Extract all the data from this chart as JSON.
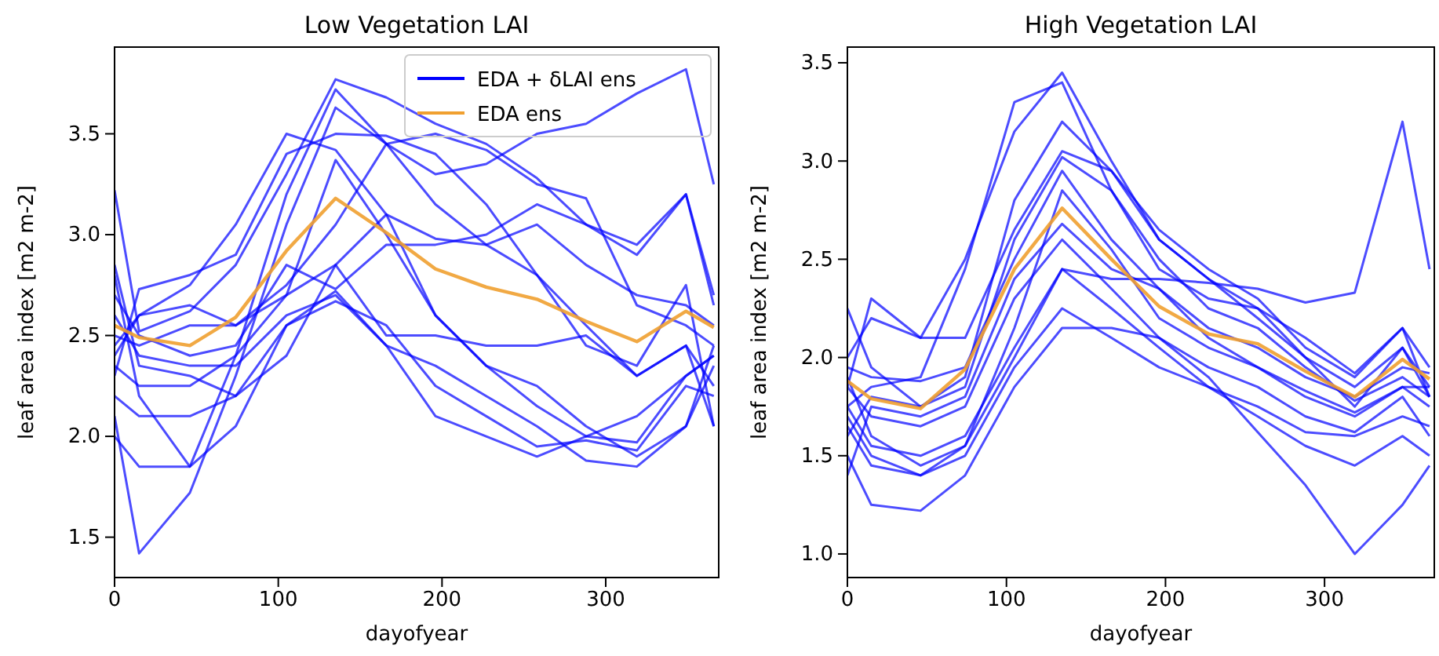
{
  "chart_data": [
    {
      "type": "line",
      "title": "Low Vegetation LAI",
      "xlabel": "dayofyear",
      "ylabel": "leaf area index [m2 m-2]",
      "x": [
        0,
        15,
        46,
        74,
        105,
        135,
        166,
        196,
        227,
        258,
        288,
        319,
        349,
        366
      ],
      "xlim": [
        0,
        369
      ],
      "xticks": [
        0,
        100,
        200,
        300
      ],
      "ylim": [
        1.3,
        3.93
      ],
      "yticks": [
        {
          "value": 1.5,
          "label": "1.5"
        },
        {
          "value": 2,
          "label": "2.0"
        },
        {
          "value": 2.5,
          "label": "2.5"
        },
        {
          "value": 3,
          "label": "3.0"
        },
        {
          "value": 3.5,
          "label": "3.5"
        }
      ],
      "grid": false,
      "legend": "top right",
      "marker": "none",
      "line_style": "solid",
      "series": [
        {
          "name": "EDA + δLAI ens",
          "color": "#0000ff",
          "values": [
            3.22,
            2.52,
            2.62,
            2.85,
            3.3,
            3.77,
            3.68,
            3.55,
            3.45,
            3.28,
            3.05,
            2.9,
            3.2,
            2.7
          ]
        },
        {
          "color": "#0000ff",
          "values": [
            2.8,
            2.2,
            1.85,
            2.4,
            3.2,
            3.72,
            3.45,
            3.15,
            2.95,
            2.8,
            2.45,
            2.35,
            2.75,
            2.05
          ]
        },
        {
          "color": "#0000ff",
          "values": [
            2.1,
            1.42,
            1.72,
            2.3,
            3.05,
            3.63,
            3.45,
            3.3,
            3.35,
            3.5,
            3.55,
            3.7,
            3.82,
            3.25
          ]
        },
        {
          "color": "#0000ff",
          "values": [
            2.3,
            2.73,
            2.8,
            2.9,
            3.4,
            3.5,
            3.49,
            3.4,
            3.15,
            2.8,
            2.55,
            2.3,
            2.45,
            2.25
          ]
        },
        {
          "color": "#0000ff",
          "values": [
            2.45,
            2.6,
            2.75,
            3.05,
            3.5,
            3.42,
            3.1,
            2.6,
            2.35,
            2.15,
            2.0,
            1.97,
            2.3,
            2.4
          ]
        },
        {
          "color": "#0000ff",
          "values": [
            2.35,
            2.25,
            2.25,
            2.4,
            2.7,
            3.37,
            3.0,
            2.6,
            2.35,
            2.25,
            2.05,
            1.9,
            2.05,
            2.35
          ]
        },
        {
          "color": "#0000ff",
          "values": [
            2.6,
            2.4,
            2.35,
            2.35,
            2.6,
            2.7,
            2.45,
            2.35,
            2.2,
            2.05,
            1.88,
            1.85,
            2.05,
            2.45
          ]
        },
        {
          "color": "#0000ff",
          "values": [
            2.0,
            1.85,
            1.85,
            2.05,
            2.55,
            2.72,
            2.45,
            2.1,
            2.0,
            1.9,
            2.0,
            2.1,
            2.3,
            2.4
          ]
        },
        {
          "color": "#0000ff",
          "values": [
            2.2,
            2.1,
            2.1,
            2.2,
            2.55,
            2.67,
            2.55,
            2.25,
            2.1,
            1.95,
            1.98,
            1.93,
            2.25,
            2.2
          ]
        },
        {
          "color": "#0000ff",
          "values": [
            2.7,
            2.5,
            2.4,
            2.45,
            2.85,
            2.73,
            2.95,
            2.95,
            3.0,
            3.15,
            3.05,
            2.95,
            3.2,
            2.65
          ]
        },
        {
          "color": "#0000ff",
          "values": [
            2.5,
            2.45,
            2.55,
            2.55,
            2.75,
            3.05,
            3.45,
            3.5,
            3.42,
            3.25,
            3.18,
            2.65,
            2.55,
            2.45
          ]
        },
        {
          "color": "#0000ff",
          "values": [
            2.85,
            2.35,
            2.3,
            2.2,
            2.4,
            2.85,
            3.1,
            2.98,
            2.95,
            3.05,
            2.85,
            2.7,
            2.65,
            2.55
          ]
        },
        {
          "color": "#0000ff",
          "values": [
            2.4,
            2.6,
            2.65,
            2.55,
            2.7,
            2.85,
            2.5,
            2.5,
            2.45,
            2.45,
            2.5,
            2.3,
            2.45,
            2.05
          ]
        },
        {
          "name": "EDA ens",
          "color": "#f0a030",
          "values": [
            2.55,
            2.49,
            2.45,
            2.59,
            2.92,
            3.18,
            3.01,
            2.83,
            2.74,
            2.68,
            2.57,
            2.47,
            2.62,
            2.54
          ]
        }
      ]
    },
    {
      "type": "line",
      "title": "High Vegetation LAI",
      "xlabel": "dayofyear",
      "ylabel": "leaf area index [m2 m-2]",
      "x": [
        0,
        15,
        46,
        74,
        105,
        135,
        166,
        196,
        227,
        258,
        288,
        319,
        349,
        366
      ],
      "xlim": [
        0,
        369
      ],
      "xticks": [
        0,
        100,
        200,
        300
      ],
      "ylim": [
        0.88,
        3.58
      ],
      "yticks": [
        {
          "value": 1,
          "label": "1.0"
        },
        {
          "value": 1.5,
          "label": "1.5"
        },
        {
          "value": 2,
          "label": "2.0"
        },
        {
          "value": 2.5,
          "label": "2.5"
        },
        {
          "value": 3,
          "label": "3.0"
        },
        {
          "value": 3.5,
          "label": "3.5"
        }
      ],
      "grid": false,
      "legend": false,
      "marker": "none",
      "line_style": "solid",
      "series": [
        {
          "color": "#0000ff",
          "values": [
            1.85,
            2.3,
            2.1,
            2.5,
            3.15,
            3.45,
            3.0,
            2.6,
            2.4,
            2.2,
            2.0,
            1.85,
            2.05,
            1.8
          ]
        },
        {
          "color": "#0000ff",
          "values": [
            1.75,
            1.85,
            1.9,
            2.45,
            3.3,
            3.4,
            2.85,
            2.45,
            2.3,
            2.25,
            2.1,
            1.92,
            2.15,
            1.8
          ]
        },
        {
          "color": "#0000ff",
          "values": [
            2.25,
            1.95,
            1.75,
            1.9,
            2.8,
            3.2,
            2.95,
            2.65,
            2.45,
            2.3,
            2.05,
            1.9,
            2.15,
            1.95
          ]
        },
        {
          "color": "#0000ff",
          "values": [
            2.0,
            2.2,
            2.1,
            2.1,
            2.65,
            3.05,
            2.95,
            2.6,
            2.4,
            2.25,
            2.0,
            1.75,
            2.05,
            1.85
          ]
        },
        {
          "color": "#0000ff",
          "values": [
            1.6,
            1.8,
            1.75,
            1.85,
            2.6,
            3.02,
            2.85,
            2.5,
            2.25,
            2.15,
            1.95,
            1.78,
            1.9,
            1.8
          ]
        },
        {
          "color": "#0000ff",
          "values": [
            1.9,
            1.6,
            1.45,
            1.55,
            2.15,
            2.85,
            2.55,
            2.2,
            2.05,
            1.95,
            1.83,
            1.72,
            1.85,
            1.75
          ]
        },
        {
          "color": "#0000ff",
          "values": [
            1.4,
            1.75,
            1.7,
            1.8,
            2.4,
            2.68,
            2.45,
            2.35,
            2.1,
            1.95,
            1.8,
            1.7,
            1.85,
            1.85
          ]
        },
        {
          "color": "#0000ff",
          "values": [
            1.75,
            1.55,
            1.5,
            1.6,
            2.05,
            2.45,
            2.25,
            2.05,
            1.85,
            1.7,
            1.55,
            1.45,
            1.6,
            1.5
          ]
        },
        {
          "color": "#0000ff",
          "values": [
            1.65,
            1.45,
            1.4,
            1.55,
            2.0,
            2.45,
            2.4,
            2.4,
            2.38,
            2.35,
            2.28,
            2.33,
            3.2,
            2.45
          ]
        },
        {
          "color": "#0000ff",
          "values": [
            1.7,
            1.5,
            1.4,
            1.5,
            1.95,
            2.25,
            2.1,
            1.95,
            1.85,
            1.75,
            1.62,
            1.6,
            1.7,
            1.65
          ]
        },
        {
          "color": "#0000ff",
          "values": [
            1.5,
            1.25,
            1.22,
            1.4,
            1.85,
            2.15,
            2.15,
            2.1,
            1.9,
            1.62,
            1.35,
            1.0,
            1.25,
            1.45
          ]
        },
        {
          "color": "#0000ff",
          "values": [
            1.85,
            1.7,
            1.65,
            1.75,
            2.3,
            2.6,
            2.35,
            2.1,
            1.95,
            1.85,
            1.7,
            1.62,
            1.8,
            1.6
          ]
        },
        {
          "color": "#0000ff",
          "values": [
            1.95,
            1.9,
            1.88,
            1.95,
            2.5,
            2.95,
            2.6,
            2.35,
            2.15,
            2.05,
            1.9,
            1.8,
            1.95,
            1.92
          ]
        },
        {
          "color": "#f0a030",
          "values": [
            1.88,
            1.79,
            1.74,
            1.94,
            2.45,
            2.76,
            2.5,
            2.26,
            2.12,
            2.07,
            1.93,
            1.8,
            1.99,
            1.89
          ]
        }
      ]
    }
  ]
}
